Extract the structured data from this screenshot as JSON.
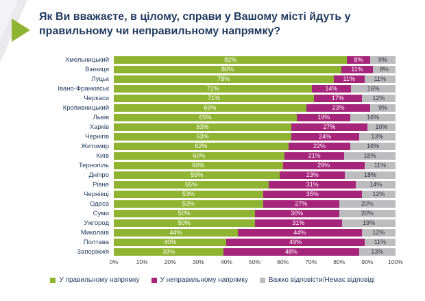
{
  "chart_data": {
    "type": "bar",
    "stacked": true,
    "orientation": "horizontal",
    "title": "Як Ви вважаєте, в цілому, справи у Вашому місті йдуть у правильному чи неправильному напрямку?",
    "categories": [
      "Хмельницький",
      "Вінниця",
      "Луцьк",
      "Івано-Франківськ",
      "Черкаси",
      "Кропивницький",
      "Львів",
      "Харків",
      "Чернігів",
      "Житомир",
      "Київ",
      "Тернопіль",
      "Дніпро",
      "Рівне",
      "Чернівці",
      "Одеса",
      "Суми",
      "Ужгород",
      "Миколаїв",
      "Полтава",
      "Запоріжжя"
    ],
    "series": [
      {
        "name": "У правильному напрямку",
        "color": "#8FB432",
        "text_color": "#FFFFFF",
        "values": [
          82,
          80,
          78,
          71,
          71,
          69,
          65,
          63,
          63,
          62,
          60,
          60,
          59,
          55,
          53,
          53,
          50,
          50,
          44,
          40,
          39
        ]
      },
      {
        "name": "У неправильному напрямку",
        "color": "#A6247A",
        "text_color": "#FFFFFF",
        "values": [
          8,
          11,
          11,
          14,
          17,
          23,
          19,
          27,
          24,
          22,
          21,
          29,
          23,
          31,
          35,
          27,
          30,
          31,
          44,
          49,
          48
        ]
      },
      {
        "name": "Важко відповісти/Немає відповіді",
        "color": "#BDBDC0",
        "text_color": "#33333B",
        "values": [
          9,
          8,
          11,
          16,
          12,
          9,
          16,
          10,
          13,
          16,
          18,
          11,
          18,
          14,
          12,
          20,
          20,
          19,
          12,
          11,
          13
        ]
      }
    ],
    "x_ticks": [
      "0%",
      "10%",
      "20%",
      "30%",
      "40%",
      "50%",
      "60%",
      "70%",
      "80%",
      "90%",
      "100%"
    ],
    "xlim": [
      0,
      100
    ],
    "value_suffix": "%",
    "legend_position": "bottom",
    "grid": false
  },
  "decor": {
    "ribbon_color": "#EAEAEC",
    "ribbon_inner_color": "#F3F3F5",
    "bullet_color": "#8FB432",
    "title_color": "#1F3A5F"
  }
}
